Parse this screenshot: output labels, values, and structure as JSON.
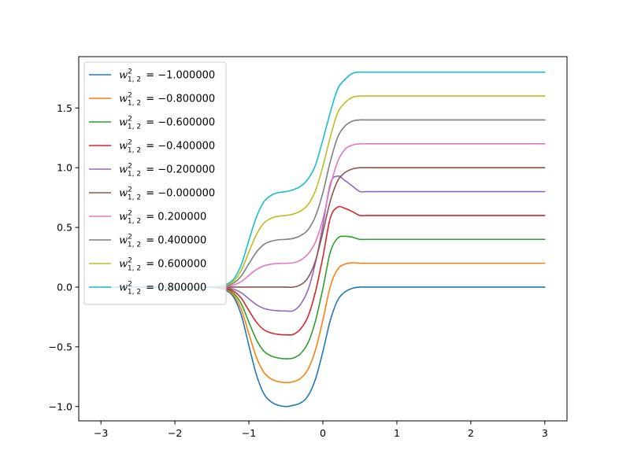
{
  "chart_data": {
    "type": "line",
    "title": "",
    "xlabel": "",
    "ylabel": "",
    "xlim": [
      -3.3,
      3.3
    ],
    "ylim": [
      -1.12,
      1.93
    ],
    "x_ticks": [
      -3,
      -2,
      -1,
      0,
      1,
      2,
      3
    ],
    "x_tick_labels": [
      "−3",
      "−2",
      "−1",
      "0",
      "1",
      "2",
      "3"
    ],
    "y_ticks": [
      -1.0,
      -0.5,
      0.0,
      0.5,
      1.0,
      1.5
    ],
    "y_tick_labels": [
      "−1.0",
      "−0.5",
      "0.0",
      "0.5",
      "1.0",
      "1.5"
    ],
    "grid": false,
    "legend_position": "upper-left",
    "x": [
      -3.0,
      -2.5,
      -2.0,
      -1.6,
      -1.4,
      -1.3,
      -1.2,
      -1.1,
      -1.0,
      -0.9,
      -0.8,
      -0.7,
      -0.6,
      -0.5,
      -0.4,
      -0.3,
      -0.2,
      -0.1,
      0.0,
      0.1,
      0.2,
      0.3,
      0.4,
      0.5,
      0.6,
      0.8,
      1.0,
      1.5,
      2.0,
      3.0
    ],
    "series": [
      {
        "name": "-1.000000",
        "color": "#1f77b4",
        "values": [
          0.0,
          0.0,
          0.0,
          0.0,
          -0.01,
          -0.03,
          -0.09,
          -0.24,
          -0.49,
          -0.73,
          -0.89,
          -0.96,
          -0.99,
          -1.0,
          -0.99,
          -0.97,
          -0.91,
          -0.77,
          -0.54,
          -0.28,
          -0.11,
          -0.04,
          -0.01,
          0.0,
          0.0,
          0.0,
          0.0,
          0.0,
          0.0,
          0.0
        ]
      },
      {
        "name": "-0.800000",
        "color": "#ff7f0e",
        "values": [
          0.0,
          0.0,
          0.0,
          0.0,
          -0.008,
          -0.024,
          -0.072,
          -0.192,
          -0.392,
          -0.584,
          -0.712,
          -0.768,
          -0.792,
          -0.8,
          -0.792,
          -0.763,
          -0.688,
          -0.526,
          -0.276,
          0.006,
          0.15,
          0.193,
          0.204,
          0.2,
          0.2,
          0.2,
          0.2,
          0.2,
          0.2,
          0.2
        ]
      },
      {
        "name": "-0.600000",
        "color": "#2ca02c",
        "values": [
          0.0,
          0.0,
          0.0,
          0.0,
          -0.006,
          -0.018,
          -0.054,
          -0.144,
          -0.294,
          -0.438,
          -0.534,
          -0.576,
          -0.594,
          -0.6,
          -0.594,
          -0.556,
          -0.466,
          -0.282,
          -0.012,
          0.292,
          0.41,
          0.426,
          0.418,
          0.4,
          0.4,
          0.4,
          0.4,
          0.4,
          0.4,
          0.4
        ]
      },
      {
        "name": "-0.400000",
        "color": "#d62728",
        "values": [
          0.0,
          0.0,
          0.0,
          0.0,
          -0.004,
          -0.012,
          -0.036,
          -0.096,
          -0.196,
          -0.292,
          -0.356,
          -0.384,
          -0.396,
          -0.4,
          -0.396,
          -0.349,
          -0.244,
          -0.038,
          0.252,
          0.578,
          0.67,
          0.659,
          0.632,
          0.6,
          0.6,
          0.6,
          0.6,
          0.6,
          0.6,
          0.6
        ]
      },
      {
        "name": "-0.200000",
        "color": "#9467bd",
        "values": [
          0.0,
          0.0,
          0.0,
          0.0,
          -0.002,
          -0.006,
          -0.018,
          -0.048,
          -0.098,
          -0.146,
          -0.178,
          -0.192,
          -0.198,
          -0.2,
          -0.198,
          -0.142,
          -0.022,
          0.206,
          0.516,
          0.864,
          0.93,
          0.892,
          0.846,
          0.8,
          0.8,
          0.8,
          0.8,
          0.8,
          0.8,
          0.8
        ]
      },
      {
        "name": "-0.000000",
        "color": "#8c564b",
        "values": [
          0.0,
          0.0,
          0.0,
          0.0,
          0.0,
          0.0,
          0.0,
          0.0,
          0.0,
          0.0,
          0.0,
          0.0,
          0.0,
          0.0,
          0.0,
          0.02,
          0.08,
          0.22,
          0.46,
          0.72,
          0.89,
          0.96,
          0.99,
          1.0,
          1.0,
          1.0,
          1.0,
          1.0,
          1.0,
          1.0
        ]
      },
      {
        "name": "0.200000",
        "color": "#e377c2",
        "values": [
          0.0,
          0.0,
          0.0,
          0.0,
          0.002,
          0.006,
          0.018,
          0.048,
          0.098,
          0.146,
          0.178,
          0.192,
          0.198,
          0.2,
          0.204,
          0.227,
          0.278,
          0.378,
          0.568,
          0.844,
          1.05,
          1.155,
          1.19,
          1.2,
          1.2,
          1.2,
          1.2,
          1.2,
          1.2,
          1.2
        ]
      },
      {
        "name": "0.400000",
        "color": "#7f7f7f",
        "values": [
          0.0,
          0.0,
          0.0,
          0.0,
          0.004,
          0.012,
          0.036,
          0.096,
          0.196,
          0.292,
          0.356,
          0.384,
          0.396,
          0.4,
          0.408,
          0.432,
          0.481,
          0.594,
          0.79,
          1.05,
          1.255,
          1.35,
          1.39,
          1.4,
          1.4,
          1.4,
          1.4,
          1.4,
          1.4,
          1.4
        ]
      },
      {
        "name": "0.600000",
        "color": "#bcbd22",
        "values": [
          0.0,
          0.0,
          0.0,
          0.0,
          0.006,
          0.018,
          0.054,
          0.144,
          0.294,
          0.438,
          0.534,
          0.576,
          0.594,
          0.6,
          0.612,
          0.638,
          0.691,
          0.808,
          1.012,
          1.256,
          1.46,
          1.545,
          1.59,
          1.6,
          1.6,
          1.6,
          1.6,
          1.6,
          1.6,
          1.6
        ]
      },
      {
        "name": "0.800000",
        "color": "#17becf",
        "values": [
          0.0,
          0.0,
          0.0,
          0.0,
          0.008,
          0.024,
          0.072,
          0.192,
          0.392,
          0.584,
          0.712,
          0.768,
          0.792,
          0.8,
          0.816,
          0.845,
          0.906,
          1.022,
          1.234,
          1.462,
          1.66,
          1.74,
          1.79,
          1.8,
          1.8,
          1.8,
          1.8,
          1.8,
          1.8,
          1.8
        ]
      }
    ]
  }
}
